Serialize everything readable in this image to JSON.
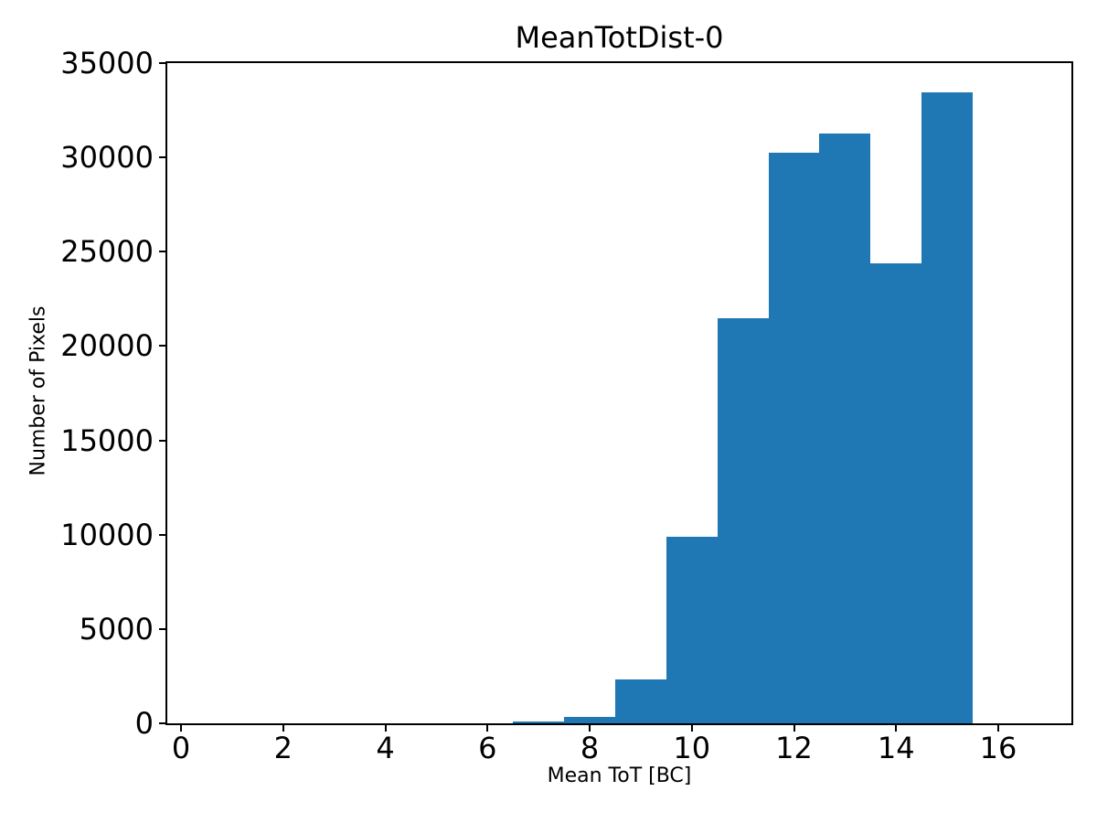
{
  "chart_data": {
    "type": "bar",
    "subtype": "histogram",
    "title": "MeanTotDist-0",
    "xlabel": "Mean ToT [BC]",
    "ylabel": "Number of Pixels",
    "bin_edges": [
      6.5,
      7.5,
      8.5,
      9.5,
      10.5,
      11.5,
      12.5,
      13.5,
      14.5,
      15.5
    ],
    "counts": [
      100,
      350,
      2350,
      9900,
      21500,
      30250,
      31250,
      24400,
      33450
    ],
    "xticks": [
      0,
      2,
      4,
      6,
      8,
      10,
      12,
      14,
      16
    ],
    "yticks": [
      0,
      5000,
      10000,
      15000,
      20000,
      25000,
      30000,
      35000
    ],
    "xlim": [
      -0.2685,
      17.4318
    ],
    "ylim": [
      0,
      35000
    ],
    "bar_color": "#1f77b4",
    "background_color": "#ffffff",
    "spine_color": "#000000",
    "grid": "off",
    "legend": "none"
  }
}
